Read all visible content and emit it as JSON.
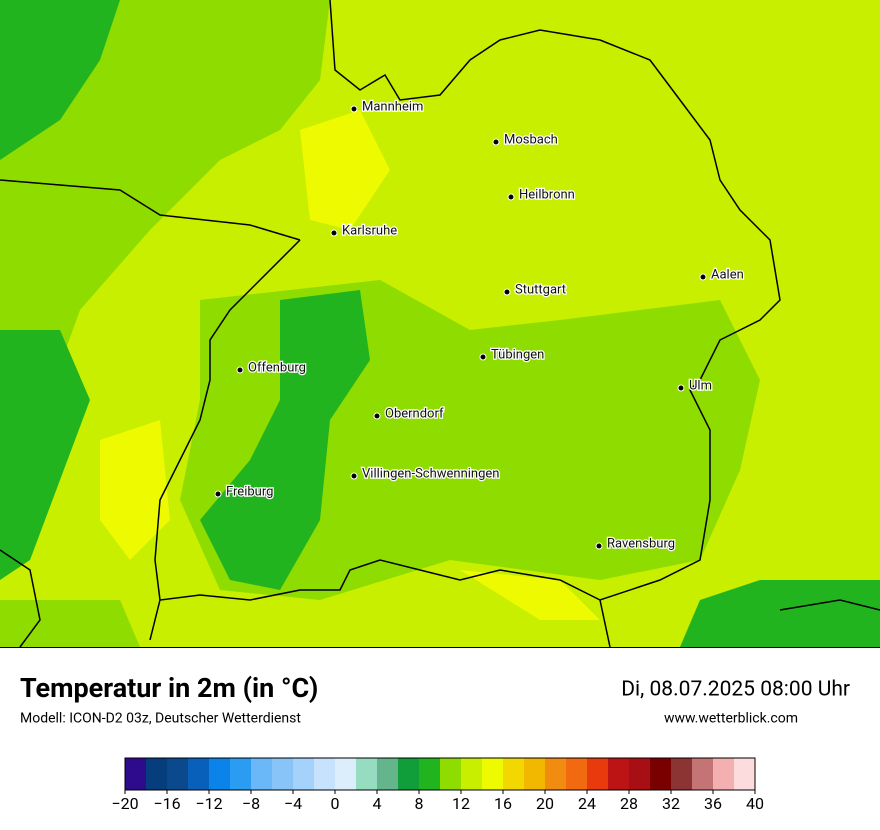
{
  "map": {
    "cities": [
      "Mannheim",
      "Mosbach",
      "Heilbronn",
      "Karlsruhe",
      "Aalen",
      "Stuttgart",
      "Tübingen",
      "Offenburg",
      "Ulm",
      "Oberndorf",
      "Villingen-Schwenningen",
      "Freiburg",
      "Ravensburg"
    ]
  },
  "header": {
    "title": "Temperatur in 2m (in °C)",
    "subtitle": "Modell: ICON-D2 03z, Deutscher Wetterdienst",
    "date": "Di, 08.07.2025 08:00 Uhr",
    "website": "www.wetterblick.com"
  },
  "colorbar": {
    "lim": [
      -20,
      40
    ],
    "colors": [
      "#2e0a8c",
      "#053d7d",
      "#0a4a8c",
      "#0860bb",
      "#0a84e8",
      "#2a9cf2",
      "#6ab8f8",
      "#88c4f8",
      "#a4d2fa",
      "#c6e2fc",
      "#dceefc",
      "#96dcc0",
      "#64b48c",
      "#0f9e3a",
      "#21b41e",
      "#8edc00",
      "#c8ee00",
      "#eefa00",
      "#f2d800",
      "#f2b800",
      "#f28c10",
      "#f26a10",
      "#e83a0c",
      "#bc1414",
      "#a80f14",
      "#7a0000",
      "#8c3434",
      "#c47474",
      "#f4b0b0",
      "#fcdcdc"
    ],
    "ticks": [
      {
        "value": -20,
        "label": "−20"
      },
      {
        "value": -16,
        "label": "−16"
      },
      {
        "value": -12,
        "label": "−12"
      },
      {
        "value": -8,
        "label": "−8"
      },
      {
        "value": -4,
        "label": "−4"
      },
      0,
      4,
      8,
      12,
      16,
      20,
      24,
      28,
      32,
      36,
      40
    ]
  }
}
